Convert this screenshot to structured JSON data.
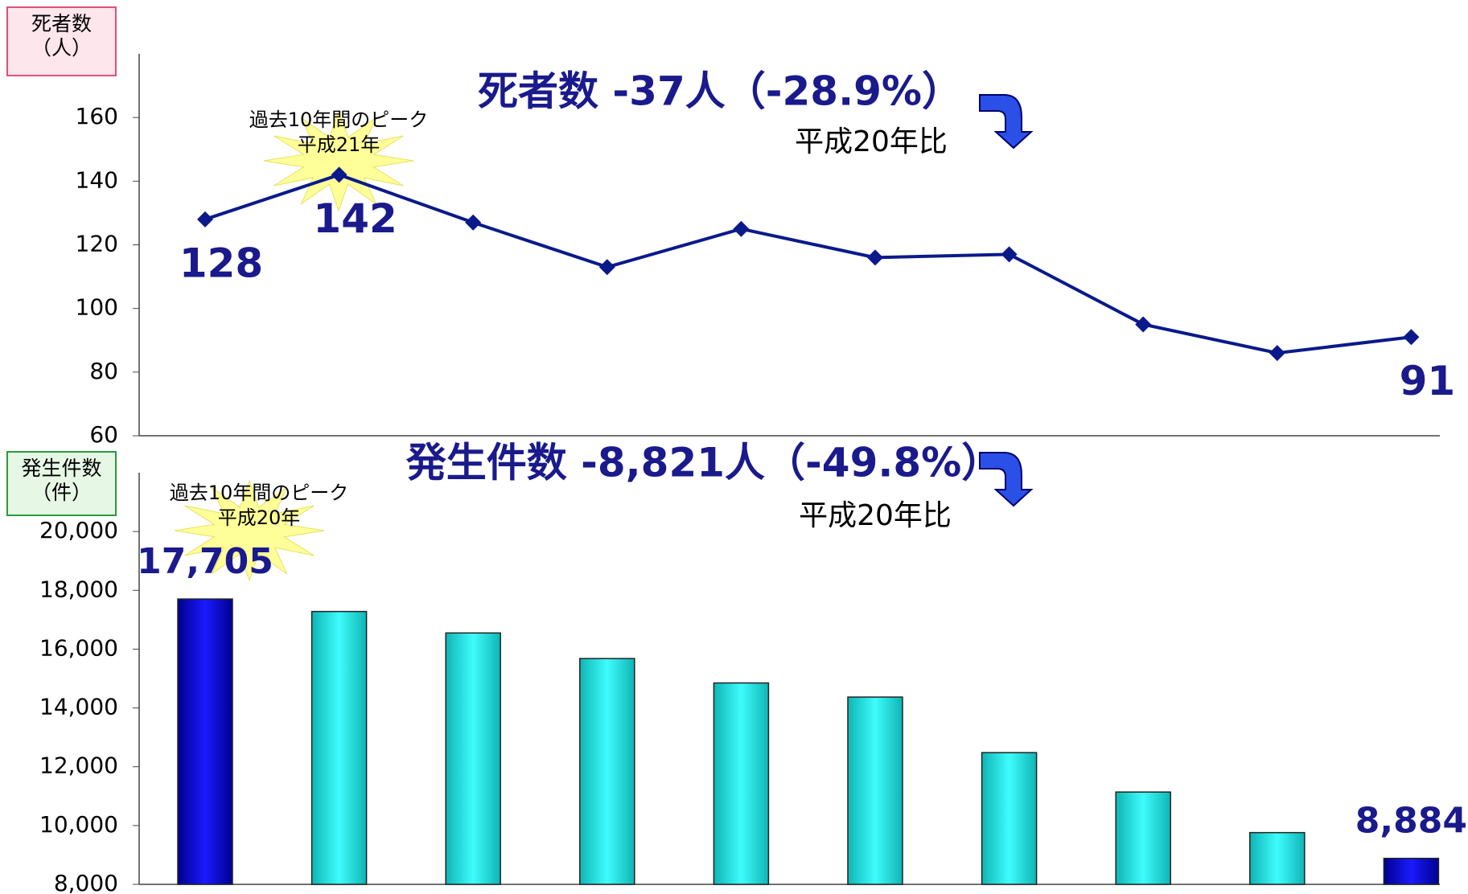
{
  "chart_data": [
    {
      "type": "line",
      "title": "死者数 -37人（-28.9%）",
      "subtitle": "平成20年比",
      "annotation": [
        "過去10年間のピーク",
        "平成21年"
      ],
      "ylabel": [
        "死者数",
        "（人）"
      ],
      "categories": [
        null,
        null,
        null,
        null,
        null,
        null,
        null,
        null,
        null,
        null
      ],
      "series": [
        {
          "color": "#0a1a8a",
          "values": [
            128,
            142,
            127,
            113,
            125,
            116,
            117,
            95,
            86,
            91
          ],
          "value_labels": [
            "128",
            "142",
            null,
            null,
            null,
            null,
            null,
            null,
            null,
            "91"
          ]
        }
      ],
      "ylim": [
        60,
        180
      ],
      "yticks": [
        60,
        80,
        100,
        120,
        140,
        160
      ]
    },
    {
      "type": "bar",
      "title": "発生件数 -8,821人（-49.8%）",
      "subtitle": "平成20年比",
      "annotation": [
        "過去10年間のピーク",
        "平成20年"
      ],
      "ylabel": [
        "発生件数",
        "（件）"
      ],
      "categories": [
        null,
        null,
        null,
        null,
        null,
        null,
        null,
        null,
        null,
        null
      ],
      "values": [
        17705,
        17280,
        16550,
        15680,
        14850,
        14370,
        12480,
        11140,
        9760,
        8884
      ],
      "value_labels": [
        "17,705",
        null,
        null,
        null,
        null,
        null,
        null,
        null,
        null,
        "8,884"
      ],
      "colors": [
        "#0a0ac8",
        "#19e6e6",
        "#19e6e6",
        "#19e6e6",
        "#19e6e6",
        "#19e6e6",
        "#19e6e6",
        "#19e6e6",
        "#19e6e6",
        "#0a0ac8"
      ],
      "ylim": [
        8000,
        22000
      ],
      "yticks": [
        {
          "value": 8000,
          "label": "8,000"
        },
        {
          "value": 10000,
          "label": "10,000"
        },
        {
          "value": 12000,
          "label": "12,000"
        },
        {
          "value": 14000,
          "label": "14,000"
        },
        {
          "value": 16000,
          "label": "16,000"
        },
        {
          "value": 18000,
          "label": "18,000"
        },
        {
          "value": 20000,
          "label": "20,000"
        }
      ]
    }
  ]
}
